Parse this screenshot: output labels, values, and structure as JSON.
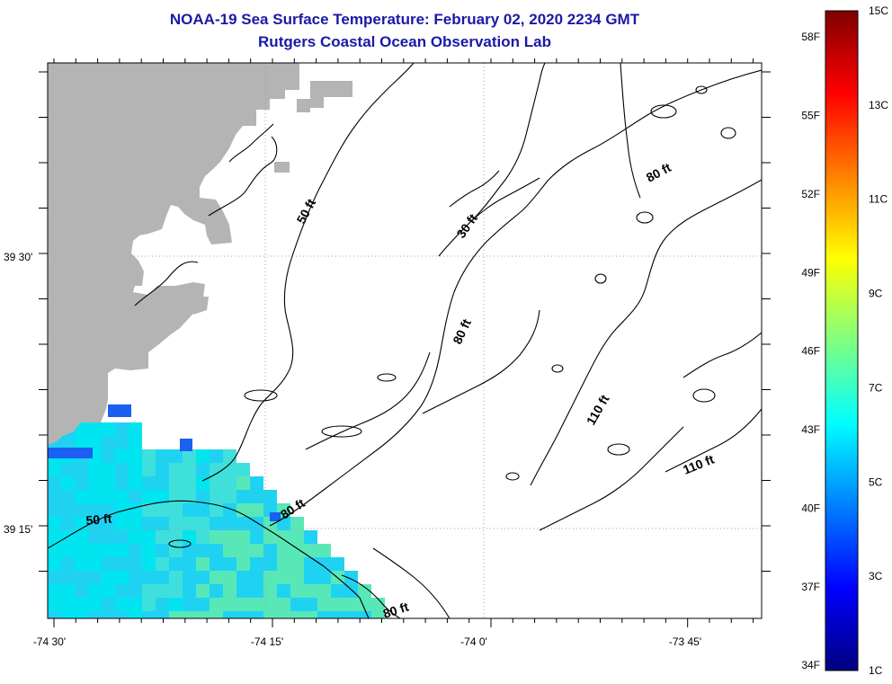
{
  "header": {
    "title": "NOAA-19 Sea Surface Temperature:  February 02, 2020 2234 GMT",
    "subtitle": "Rutgers Coastal Ocean Observation Lab"
  },
  "axes": {
    "lon_ticks": [
      {
        "lon": -74.5,
        "label": "-74 30'"
      },
      {
        "lon": -74.25,
        "label": "-74 15'"
      },
      {
        "lon": -74.0,
        "label": "-74 0'"
      },
      {
        "lon": -73.75,
        "label": "-73 45'"
      }
    ],
    "lat_ticks": [
      {
        "lat": 39.5,
        "label": "39 30'"
      },
      {
        "lat": 39.25,
        "label": "39 15'"
      }
    ]
  },
  "contour_labels": [
    {
      "text": "50 ft"
    },
    {
      "text": "30 ft"
    },
    {
      "text": "80 ft"
    },
    {
      "text": "80 ft"
    },
    {
      "text": "110 ft"
    },
    {
      "text": "110 ft"
    },
    {
      "text": "50 ft"
    },
    {
      "text": "80 ft"
    },
    {
      "text": "80 ft"
    }
  ],
  "colorbar": {
    "range_c": [
      1,
      15
    ],
    "fahrenheit_labels": [
      "58F",
      "55F",
      "52F",
      "49F",
      "46F",
      "43F",
      "40F",
      "37F",
      "34F"
    ],
    "celsius_labels": [
      "15C",
      "13C",
      "11C",
      "9C",
      "7C",
      "5C",
      "3C",
      "1C"
    ],
    "colors": [
      "#000080",
      "#0000ff",
      "#0080ff",
      "#00ffff",
      "#80ff80",
      "#ffff00",
      "#ff8000",
      "#ff0000",
      "#800000"
    ]
  },
  "style": {
    "land_color": "#b4b4b4",
    "sst_colors": [
      "#00e5f0",
      "#1fd2f2",
      "#3fe0dc",
      "#58e8b8",
      "#1b60f0",
      "#0a3ad8"
    ],
    "grid_color": "#a0a0a0"
  }
}
